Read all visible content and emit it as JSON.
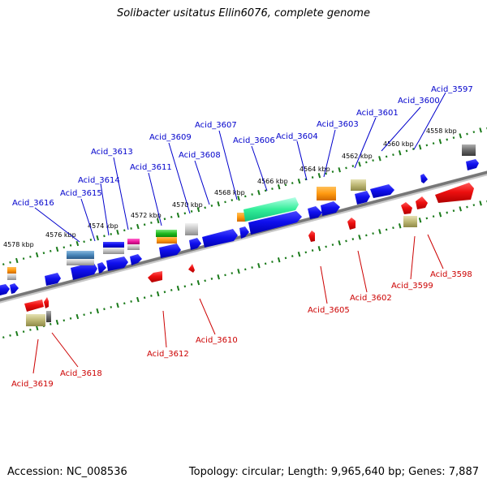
{
  "title": "Solibacter usitatus Ellin6076, complete genome",
  "footer": {
    "accession": "Accession: NC_008536",
    "summary": "Topology: circular; Length: 9,965,640 bp; Genes: 7,887"
  },
  "colors": {
    "plus_label": "#0000cc",
    "minus_label": "#cc0000",
    "backbone": "#808080",
    "tick": "#1a7a1a"
  },
  "scale_labels": [
    "4558 kbp",
    "4560 kbp",
    "4562 kbp",
    "4564 kbp",
    "4566 kbp",
    "4568 kbp",
    "4570 kbp",
    "4572 kbp",
    "4574 kbp",
    "4576 kbp",
    "4578 kbp"
  ],
  "plus_strand_labels": [
    "Acid_3597",
    "Acid_3600",
    "Acid_3601",
    "Acid_3603",
    "Acid_3604",
    "Acid_3606",
    "Acid_3607",
    "Acid_3608",
    "Acid_3609",
    "Acid_3611",
    "Acid_3613",
    "Acid_3614",
    "Acid_3615",
    "Acid_3616"
  ],
  "minus_strand_labels": [
    "Acid_3598",
    "Acid_3599",
    "Acid_3602",
    "Acid_3605",
    "Acid_3610",
    "Acid_3612",
    "Acid_3618",
    "Acid_3619"
  ]
}
